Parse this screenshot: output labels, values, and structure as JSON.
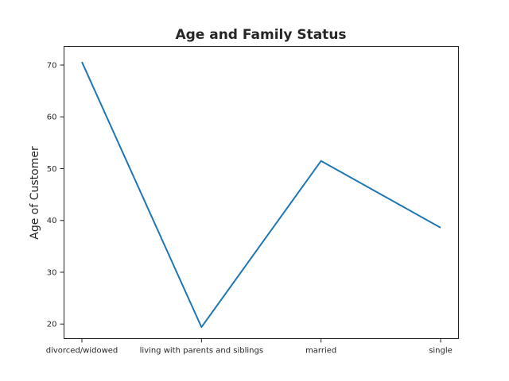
{
  "chart_data": {
    "type": "line",
    "title": "Age and Family Status",
    "xlabel": "",
    "ylabel": "Age of Customer",
    "categories": [
      "divorced/widowed",
      "living with parents and siblings",
      "married",
      "single"
    ],
    "values": [
      70.6,
      19.4,
      51.5,
      38.6
    ],
    "ylim": [
      17.2,
      73.6
    ],
    "yticks": [
      20,
      30,
      40,
      50,
      60,
      70
    ],
    "grid": false,
    "line_color": "#1f77b4"
  }
}
